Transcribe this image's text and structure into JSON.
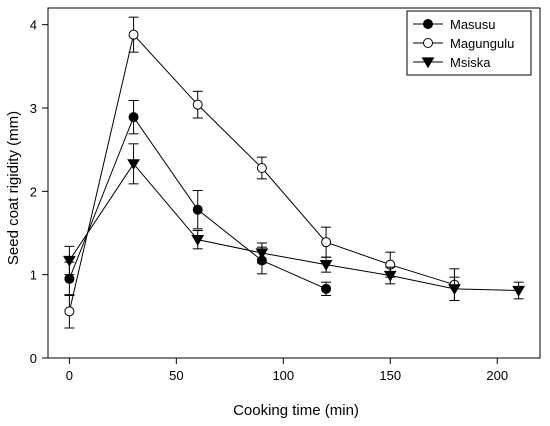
{
  "chart_data": {
    "type": "line",
    "xlabel": "Cooking time (min)",
    "ylabel": "Seed coat rigidity (mm)",
    "xlim": [
      -10,
      220
    ],
    "ylim": [
      0,
      4.2
    ],
    "xticks": [
      0,
      50,
      100,
      150,
      200
    ],
    "yticks": [
      0,
      1,
      2,
      3,
      4
    ],
    "grid": false,
    "legend_position": "top-right",
    "series": [
      {
        "name": "Masusu",
        "marker": "filled-circle",
        "color": "#000000",
        "x": [
          0,
          30,
          60,
          90,
          120
        ],
        "y": [
          0.95,
          2.89,
          1.78,
          1.17,
          0.83
        ],
        "err": [
          0.2,
          0.2,
          0.23,
          0.16,
          0.08
        ]
      },
      {
        "name": "Magungulu",
        "marker": "open-circle",
        "color": "#000000",
        "x": [
          0,
          30,
          60,
          90,
          120,
          150,
          180
        ],
        "y": [
          0.56,
          3.88,
          3.04,
          2.28,
          1.39,
          1.12,
          0.88
        ],
        "err": [
          0.2,
          0.21,
          0.16,
          0.13,
          0.18,
          0.15,
          0.19
        ]
      },
      {
        "name": "Msiska",
        "marker": "filled-triangle-down",
        "color": "#000000",
        "x": [
          0,
          30,
          60,
          90,
          120,
          150,
          180,
          210
        ],
        "y": [
          1.17,
          2.33,
          1.42,
          1.26,
          1.12,
          0.99,
          0.83,
          0.81
        ],
        "err": [
          0.17,
          0.24,
          0.11,
          0.12,
          0.09,
          0.1,
          0.14,
          0.1
        ]
      }
    ]
  }
}
